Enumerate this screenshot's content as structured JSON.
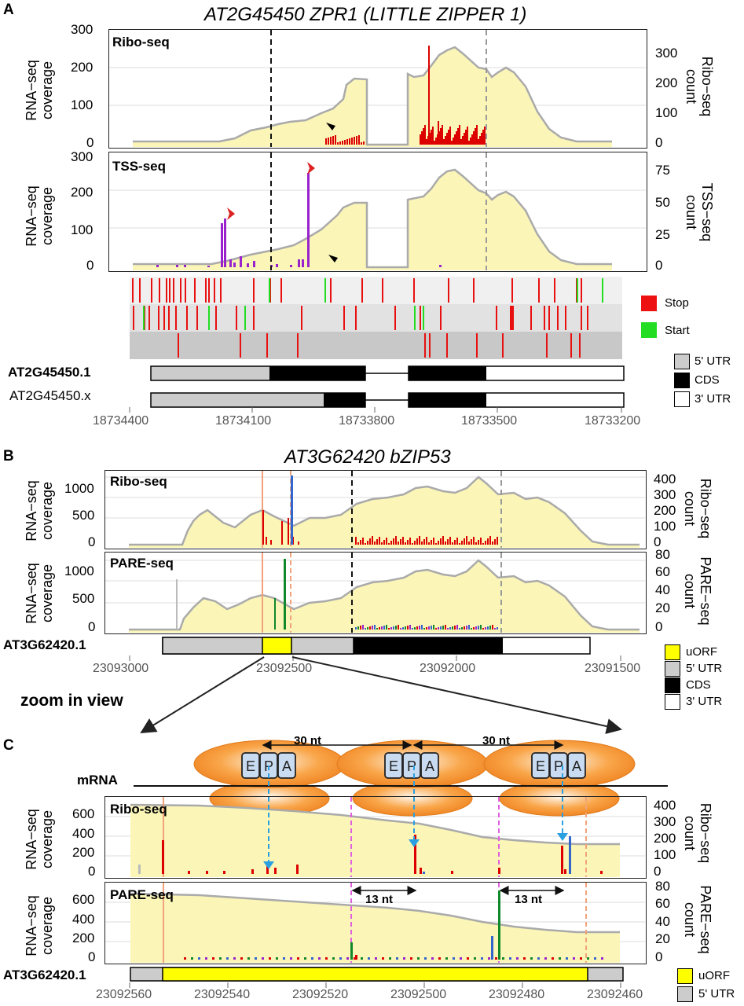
{
  "panel_a": {
    "letter": "A",
    "title": "AT2G45450 ZPR1 (LITTLE ZIPPER 1)",
    "ribo": {
      "label": "Ribo-seq",
      "left_axis": [
        "RNA−seq",
        "coverage"
      ],
      "right_axis": [
        "Ribo−seq",
        "count"
      ],
      "left_ticks": [
        "300",
        "200",
        "100",
        "0"
      ],
      "right_ticks": [
        "300",
        "200",
        "100",
        "0"
      ]
    },
    "tss": {
      "label": "TSS-seq",
      "left_axis": [
        "RNA−seq",
        "coverage"
      ],
      "right_axis": [
        "TSS−seq",
        "count"
      ],
      "left_ticks": [
        "300",
        "200",
        "100",
        "0"
      ],
      "right_ticks": [
        "75",
        "50",
        "25",
        "0"
      ]
    },
    "frames_legend": [
      {
        "label": "Stop",
        "color": "#ee1111"
      },
      {
        "label": "Start",
        "color": "#22dd22"
      }
    ],
    "transcripts": [
      {
        "name": "AT2G45450.1",
        "bold": true
      },
      {
        "name": "AT2G45450.x",
        "bold": false
      }
    ],
    "gene_legend": [
      "5' UTR",
      "CDS",
      "3' UTR"
    ],
    "x_ticks": [
      "18734400",
      "18734100",
      "18733800",
      "18733500",
      "18733200"
    ]
  },
  "panel_b": {
    "letter": "B",
    "title": "AT3G62420 bZIP53",
    "ribo": {
      "label": "Ribo-seq",
      "left_axis": [
        "RNA−seq",
        "coverage"
      ],
      "right_axis": [
        "Ribo−seq",
        "count"
      ],
      "left_ticks": [
        "1000",
        "500",
        "0"
      ],
      "right_ticks": [
        "400",
        "300",
        "200",
        "100",
        "0"
      ]
    },
    "pare": {
      "label": "PARE-seq",
      "left_axis": [
        "RNA−seq",
        "coverage"
      ],
      "right_axis": [
        "PARE−seq",
        "count"
      ],
      "left_ticks": [
        "1000",
        "500",
        "0"
      ],
      "right_ticks": [
        "80",
        "60",
        "40",
        "20",
        "0"
      ]
    },
    "transcript": "AT3G62420.1",
    "gene_legend": [
      "uORF",
      "5' UTR",
      "CDS",
      "3' UTR"
    ],
    "x_ticks": [
      "23093000",
      "23092500",
      "23092000",
      "23091500"
    ],
    "zoom_label": "zoom in view"
  },
  "panel_c": {
    "letter": "C",
    "mrna_label": "mRNA",
    "spacing": [
      "30 nt",
      "30 nt"
    ],
    "sites": [
      "E",
      "P",
      "A"
    ],
    "ribo": {
      "label": "Ribo-seq",
      "left_axis": [
        "RNA−seq",
        "coverage"
      ],
      "right_axis": [
        "Ribo−seq",
        "count"
      ],
      "left_ticks": [
        "600",
        "400",
        "200",
        "0"
      ],
      "right_ticks": [
        "400",
        "300",
        "200",
        "100",
        "0"
      ]
    },
    "pare": {
      "label": "PARE-seq",
      "left_axis": [
        "RNA−seq",
        "coverage"
      ],
      "right_axis": [
        "PARE−seq",
        "count"
      ],
      "left_ticks": [
        "600",
        "400",
        "200",
        "0"
      ],
      "right_ticks": [
        "80",
        "60",
        "40",
        "20",
        "0"
      ],
      "offsets": [
        "13 nt",
        "13 nt"
      ]
    },
    "transcript": "AT3G62420.1",
    "gene_legend": [
      "uORF",
      "5' UTR"
    ],
    "x_ticks": [
      "23092560",
      "23092540",
      "23092520",
      "23092500",
      "23092480",
      "23092460"
    ]
  },
  "colors": {
    "coverage_fill": "#fbf6b8",
    "coverage_line": "#a8a8a8",
    "ribo": "#dd0000",
    "tss": "#9922cc",
    "uorf": "#ffff00",
    "utr": "#cccccc",
    "cds": "#000000"
  }
}
